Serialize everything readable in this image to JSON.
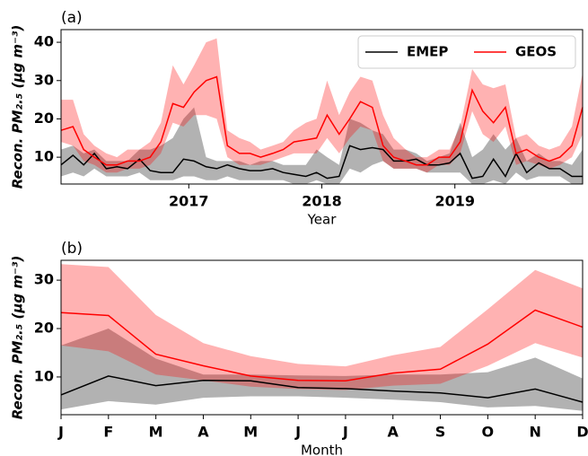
{
  "chart_data": [
    {
      "type": "line",
      "label": "(a)",
      "xlabel": "Year",
      "ylabel": "Recon. PM₂.₅ (μg m⁻³)",
      "legend": "upper right",
      "x": [
        2016.04,
        2016.13,
        2016.21,
        2016.29,
        2016.38,
        2016.46,
        2016.54,
        2016.63,
        2016.71,
        2016.79,
        2016.88,
        2016.96,
        2017.04,
        2017.13,
        2017.21,
        2017.29,
        2017.38,
        2017.46,
        2017.54,
        2017.63,
        2017.71,
        2017.79,
        2017.88,
        2017.96,
        2018.04,
        2018.13,
        2018.21,
        2018.29,
        2018.38,
        2018.46,
        2018.54,
        2018.63,
        2018.71,
        2018.79,
        2018.88,
        2018.96,
        2019.04,
        2019.13,
        2019.21,
        2019.29,
        2019.38,
        2019.46,
        2019.54,
        2019.63,
        2019.71,
        2019.79,
        2019.88,
        2019.96
      ],
      "xlim": [
        2016.04,
        2019.96
      ],
      "xticks": [
        2017,
        2018,
        2019
      ],
      "ylim": [
        3,
        43.3
      ],
      "yticks": [
        10,
        20,
        30,
        40
      ],
      "series": [
        {
          "name": "EMEP",
          "color": "#000000",
          "values": [
            8,
            10.5,
            8,
            11,
            7,
            7.5,
            7,
            9.5,
            6.5,
            6,
            6,
            9.5,
            9,
            7.5,
            7,
            8,
            7,
            6.5,
            6.5,
            7,
            6,
            5.5,
            5,
            6,
            4.5,
            5,
            13,
            12,
            12.5,
            12,
            9,
            9,
            9.5,
            8,
            8,
            8.5,
            11,
            4.5,
            5,
            9.5,
            5,
            11,
            6,
            8.5,
            7,
            7,
            5,
            5
          ],
          "upper": [
            12,
            13,
            11,
            12,
            9,
            9,
            9,
            12,
            12,
            13,
            15,
            20,
            23,
            10,
            9,
            9,
            9,
            8,
            9,
            9,
            8,
            8,
            8,
            12,
            10,
            8,
            20,
            19,
            17,
            16,
            12,
            12,
            11,
            9,
            10,
            11,
            19,
            10,
            12,
            16,
            12,
            15,
            9,
            11,
            9,
            9,
            8,
            12
          ],
          "lower": [
            5,
            6,
            5,
            7,
            5,
            5,
            5,
            6,
            4,
            4,
            4,
            5,
            5,
            4,
            4,
            5,
            4,
            4,
            4,
            4,
            4,
            3,
            3,
            4,
            3,
            3,
            7,
            6,
            8,
            9,
            7,
            7,
            7,
            6,
            6,
            6,
            6,
            3,
            3,
            4,
            3,
            6,
            4,
            5,
            5,
            5,
            3,
            3
          ]
        },
        {
          "name": "GEOS",
          "color": "#ff0000",
          "values": [
            17,
            18,
            12,
            10,
            8,
            8,
            9,
            9,
            10,
            14,
            24,
            23,
            27,
            30,
            31,
            13,
            11,
            11,
            10,
            11,
            12,
            14,
            14.5,
            15,
            21,
            16,
            20,
            24.5,
            23,
            13,
            10,
            9,
            8,
            8,
            10,
            10,
            14,
            27.5,
            22,
            19,
            23,
            11,
            12,
            10,
            9,
            10,
            13,
            23
          ],
          "upper": [
            25,
            25,
            16,
            13,
            11,
            10,
            12,
            12,
            14,
            19,
            34,
            29,
            34,
            40,
            41,
            17,
            15,
            14,
            12,
            13,
            14,
            17,
            19,
            20,
            30,
            21,
            27,
            31,
            30,
            21,
            15,
            12,
            10,
            10,
            12,
            12,
            18,
            33,
            29,
            28,
            29,
            15,
            16,
            13,
            12,
            13,
            18,
            32
          ],
          "lower": [
            14,
            13,
            9,
            8,
            6,
            6,
            7,
            7,
            8,
            11,
            19,
            18,
            21,
            21,
            20,
            10,
            8,
            8,
            8,
            9,
            10,
            11,
            11,
            11,
            15,
            11,
            15,
            18,
            17,
            9,
            7,
            7,
            7,
            6,
            8,
            8,
            11,
            22,
            16,
            14,
            18,
            8,
            9,
            8,
            7,
            8,
            10,
            16
          ]
        }
      ]
    },
    {
      "type": "line",
      "label": "(b)",
      "xlabel": "Month",
      "ylabel": "Recon. PM₂.₅ (μg m⁻³)",
      "categories": [
        "J",
        "F",
        "M",
        "A",
        "M",
        "J",
        "J",
        "A",
        "S",
        "O",
        "N",
        "D"
      ],
      "ylim": [
        2.2,
        34.1
      ],
      "yticks": [
        10,
        20,
        30
      ],
      "series": [
        {
          "color": "#000000",
          "values": [
            6.3,
            10.2,
            8.2,
            9.3,
            9.2,
            7.8,
            7.6,
            7.1,
            6.7,
            5.7,
            7.5,
            4.8
          ],
          "upper": [
            16.5,
            20,
            13.8,
            10.5,
            10.5,
            10.3,
            10.2,
            10.5,
            10.5,
            11,
            14,
            9.7
          ],
          "lower": [
            3.3,
            5,
            4.3,
            5.7,
            6,
            6,
            5.7,
            5.3,
            4.8,
            3.7,
            4,
            3
          ]
        },
        {
          "color": "#ff0000",
          "values": [
            23.3,
            22.7,
            14.7,
            12.3,
            10.2,
            9.3,
            9.2,
            10.8,
            11.6,
            16.8,
            23.8,
            20.3
          ],
          "upper": [
            33.3,
            32.7,
            22.8,
            17,
            14.3,
            12.7,
            12.2,
            14.5,
            16.2,
            24,
            32.1,
            28.3
          ],
          "lower": [
            16.5,
            15.3,
            10.5,
            9.3,
            8,
            7.5,
            7.3,
            8.2,
            8.6,
            12.3,
            17,
            14
          ]
        }
      ]
    }
  ]
}
